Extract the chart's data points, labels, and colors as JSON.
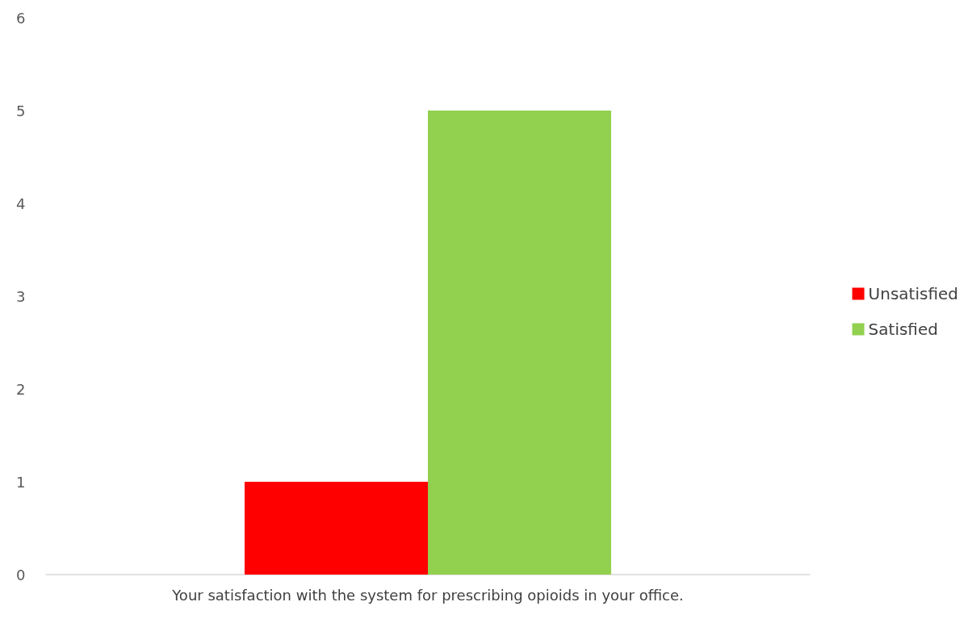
{
  "chart_data": {
    "type": "bar",
    "categories": [
      "Your satisfaction with the system for prescribing opioids in your office."
    ],
    "series": [
      {
        "name": "Unsatisfied",
        "color": "#ff0000",
        "values": [
          1
        ]
      },
      {
        "name": "Satisfied",
        "color": "#92d050",
        "values": [
          5
        ]
      }
    ],
    "ylim": [
      0,
      6
    ],
    "yticks": [
      0,
      1,
      2,
      3,
      4,
      5,
      6
    ],
    "grid": false,
    "legend": "right"
  }
}
